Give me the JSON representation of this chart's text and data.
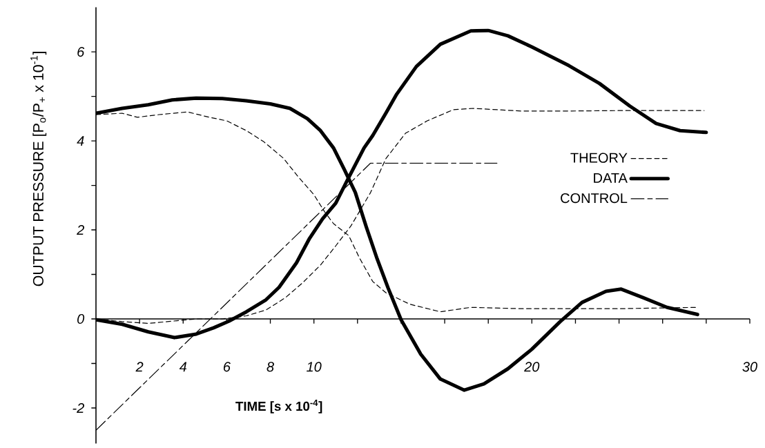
{
  "chart_data": {
    "type": "line",
    "xlabel": "TIME [s x 10$^{-4}$]",
    "ylabel": "OUTPUT PRESSURE [P$_{o}$/P$_{+}$ x 10$^{-1}$]",
    "xlim": [
      0,
      30
    ],
    "ylim": [
      -2.8,
      7
    ],
    "xticks": [
      2,
      4,
      6,
      8,
      10,
      {
        "value": 12,
        "label": null
      },
      {
        "value": 14,
        "label": null
      },
      {
        "value": 16,
        "label": null
      },
      {
        "value": 18,
        "label": null
      },
      20,
      {
        "value": 22,
        "label": null
      },
      {
        "value": 24,
        "label": null
      },
      {
        "value": 26,
        "label": null
      },
      {
        "value": 28,
        "label": null
      },
      30
    ],
    "yticks": [
      -2,
      {
        "value": -1,
        "label": null
      },
      0,
      {
        "value": 1,
        "label": null
      },
      2,
      {
        "value": 3,
        "label": null
      },
      4,
      {
        "value": 5,
        "label": null
      },
      6
    ],
    "legend": "right",
    "series": [
      {
        "name": "THEORY",
        "color": "#000000",
        "line_style": "dashed",
        "x": [
          0,
          1.2,
          1.9,
          2.9,
          4.2,
          5.2,
          6.0,
          6.9,
          7.7,
          8.6,
          9.3,
          10.0,
          10.5,
          10.9,
          11.6,
          12.1,
          12.7,
          13.3,
          14.4,
          15.8,
          17.2,
          19.5,
          21.7,
          24.0,
          27.6
        ],
        "values": [
          4.59,
          4.62,
          4.53,
          4.59,
          4.65,
          4.53,
          4.45,
          4.23,
          3.98,
          3.61,
          3.18,
          2.79,
          2.4,
          2.14,
          1.87,
          1.36,
          0.84,
          0.59,
          0.33,
          0.16,
          0.26,
          0.23,
          0.23,
          0.23,
          0.26
        ]
      },
      {
        "name": "DATA",
        "color": "#000000",
        "line_style": "solid",
        "x": [
          0,
          1.2,
          2.4,
          3.5,
          4.6,
          5.8,
          6.9,
          8.0,
          8.9,
          9.7,
          10.3,
          10.9,
          11.4,
          11.9,
          12.4,
          12.9,
          13.4,
          14.0,
          14.9,
          15.8,
          16.9,
          17.8,
          18.9,
          20.0,
          21.3,
          22.3,
          23.4,
          24.1,
          25.1,
          26.2,
          27.6
        ],
        "values": [
          4.62,
          4.73,
          4.81,
          4.92,
          4.96,
          4.95,
          4.9,
          4.83,
          4.73,
          4.5,
          4.23,
          3.84,
          3.35,
          2.84,
          2.07,
          1.35,
          0.7,
          -0.02,
          -0.79,
          -1.35,
          -1.6,
          -1.46,
          -1.12,
          -0.68,
          -0.06,
          0.37,
          0.62,
          0.67,
          0.48,
          0.26,
          0.1
        ]
      },
      {
        "name": "CONTROL",
        "color": "#000000",
        "line_style": "dashdot",
        "x": [
          0,
          12.6,
          18.4
        ],
        "values": [
          -2.5,
          3.5,
          3.5
        ]
      },
      {
        "color": "#000000",
        "line_style": "dashed",
        "x": [
          0,
          1.2,
          2.4,
          3.5,
          4.6,
          5.8,
          6.9,
          7.8,
          8.7,
          9.5,
          10.3,
          11.0,
          11.7,
          12.6,
          13.3,
          14.2,
          15.2,
          16.4,
          17.3,
          19.5,
          21.7,
          24.0,
          27.9
        ],
        "values": [
          0,
          -0.06,
          -0.1,
          -0.05,
          0,
          0,
          0.07,
          0.2,
          0.48,
          0.82,
          1.21,
          1.64,
          2.09,
          2.84,
          3.6,
          4.17,
          4.45,
          4.7,
          4.73,
          4.67,
          4.67,
          4.68,
          4.68
        ]
      },
      {
        "color": "#000000",
        "line_style": "solid",
        "x": [
          0,
          1.2,
          2.4,
          3.6,
          4.6,
          5.4,
          6.1,
          6.9,
          7.8,
          8.4,
          9.2,
          9.8,
          10.4,
          11.0,
          11.6,
          12.3,
          12.7,
          13.3,
          13.8,
          14.7,
          15.8,
          17.2,
          18.0,
          18.9,
          20.0,
          21.7,
          23.1,
          24.5,
          25.7,
          26.8,
          28.0
        ],
        "values": [
          -0.02,
          -0.12,
          -0.29,
          -0.42,
          -0.34,
          -0.2,
          -0.05,
          0.16,
          0.43,
          0.71,
          1.26,
          1.81,
          2.25,
          2.6,
          3.18,
          3.84,
          4.12,
          4.62,
          5.05,
          5.67,
          6.17,
          6.47,
          6.48,
          6.36,
          6.11,
          5.69,
          5.29,
          4.78,
          4.39,
          4.23,
          4.19
        ]
      }
    ]
  }
}
